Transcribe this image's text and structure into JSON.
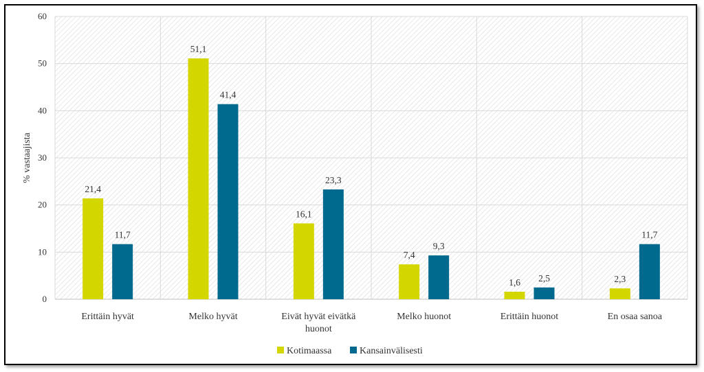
{
  "chart_data": {
    "type": "bar",
    "categories": [
      "Erittäin hyvät",
      "Melko hyvät",
      "Eivät hyvät eivätkä huonot",
      "Melko huonot",
      "Erittäin huonot",
      "En osaa sanoa"
    ],
    "category_lines": [
      [
        "Erittäin hyvät"
      ],
      [
        "Melko hyvät"
      ],
      [
        "Eivät hyvät eivätkä",
        "huonot"
      ],
      [
        "Melko huonot"
      ],
      [
        "Erittäin huonot"
      ],
      [
        "En osaa sanoa"
      ]
    ],
    "series": [
      {
        "name": "Kotimaassa",
        "values": [
          21.4,
          51.1,
          16.1,
          7.4,
          1.6,
          2.3
        ],
        "labels": [
          "21,4",
          "51,1",
          "16,1",
          "7,4",
          "1,6",
          "2,3"
        ],
        "color": "#d4d600"
      },
      {
        "name": "Kansainvälisesti",
        "values": [
          11.7,
          41.4,
          23.3,
          9.3,
          2.5,
          11.7
        ],
        "labels": [
          "11,7",
          "41,4",
          "23,3",
          "9,3",
          "2,5",
          "11,7"
        ],
        "color": "#006a8e"
      }
    ],
    "ylabel": "% vastaajista",
    "xlabel": "",
    "ylim": [
      0,
      60
    ],
    "yticks": [
      0,
      10,
      20,
      30,
      40,
      50,
      60
    ],
    "grid": true,
    "legend": "bottom"
  }
}
